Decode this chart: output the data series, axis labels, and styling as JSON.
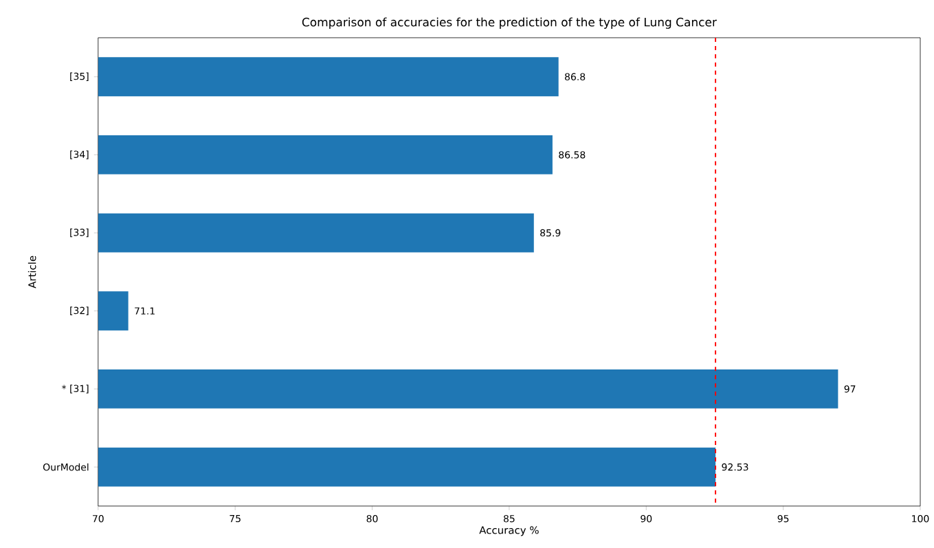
{
  "chart_data": {
    "type": "bar",
    "orientation": "horizontal",
    "title": "Comparison of accuracies for the prediction of the type of Lung Cancer",
    "xlabel": "Accuracy %",
    "ylabel": "Article",
    "categories": [
      "[35]",
      "[34]",
      "[33]",
      "[32]",
      "* [31]",
      "OurModel"
    ],
    "values": [
      86.8,
      86.58,
      85.9,
      71.1,
      97,
      92.53
    ],
    "value_labels": [
      "86.8",
      "86.58",
      "85.9",
      "71.1",
      "97",
      "92.53"
    ],
    "color": "#1f77b4",
    "xlim": [
      70,
      100
    ],
    "xticks": [
      70,
      75,
      80,
      85,
      90,
      95,
      100
    ],
    "ref_lines": [
      {
        "axis": "x",
        "value": 92.53,
        "color": "#ff0000",
        "line_style": "dashed"
      }
    ]
  }
}
